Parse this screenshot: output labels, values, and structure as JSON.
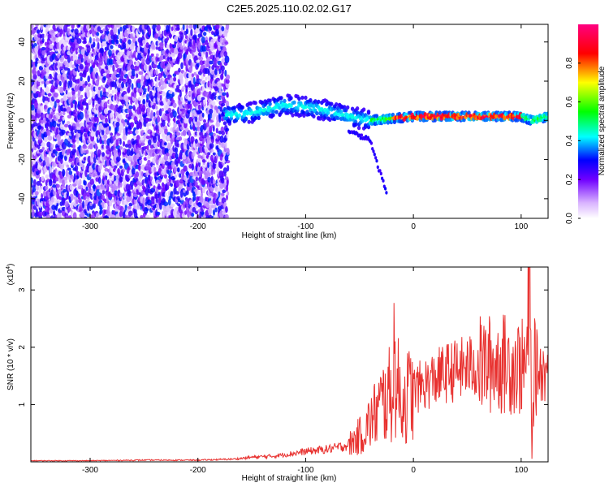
{
  "title": "C2E5.2025.110.02.02.G17",
  "chart_data": [
    {
      "type": "heatmap",
      "xlabel": "Height of straight line (km)",
      "ylabel": "Frequency (Hz)",
      "xlim": [
        -355,
        125
      ],
      "ylim": [
        -50,
        49
      ],
      "xticks": [
        -300,
        -200,
        -100,
        0,
        100
      ],
      "yticks": [
        -40,
        -20,
        0,
        20,
        40
      ],
      "colorbar": {
        "label": "Normalized spectral amplitude",
        "range": [
          0,
          1
        ],
        "ticks": [
          "0.0",
          "0.2",
          "0.4",
          "0.6",
          "0.8"
        ],
        "colormap": [
          "#ffffff",
          "#7000ff",
          "#0000ff",
          "#00ffff",
          "#00ff00",
          "#ffff00",
          "#ff0000",
          "#ff0080"
        ]
      },
      "features": {
        "noise_region_x": [
          -355,
          -172
        ],
        "signal_track": {
          "x": [
            -175,
            -160,
            -140,
            -120,
            -100,
            -80,
            -60,
            -40,
            -20,
            0,
            20,
            40,
            60,
            80,
            100,
            110,
            125
          ],
          "freq_hz": [
            3,
            3,
            5,
            8,
            7,
            5,
            2,
            0,
            1,
            2,
            2,
            2,
            2,
            2,
            2,
            0,
            2
          ]
        },
        "branch_track": {
          "x": [
            -60,
            -50,
            -40,
            -35,
            -30,
            -25
          ],
          "freq_hz": [
            -5,
            -8,
            -10,
            -20,
            -28,
            -37
          ]
        }
      }
    },
    {
      "type": "line",
      "xlabel": "Height of straight line (km)",
      "ylabel": "SNR (10 * v/v)",
      "multiplier_label": "(x10",
      "multiplier_exp": "4",
      "xlim": [
        -355,
        125
      ],
      "ylim": [
        0,
        3.4
      ],
      "xticks": [
        -300,
        -200,
        -100,
        0,
        100
      ],
      "yticks": [
        1,
        2,
        3
      ],
      "color": "#e8312f",
      "series": [
        {
          "x": [
            -355,
            -300,
            -250,
            -200,
            -180,
            -165,
            -150,
            -130,
            -110,
            -100,
            -90,
            -80,
            -70,
            -60,
            -50,
            -45,
            -40,
            -35,
            -30,
            -25,
            -20,
            -18,
            -15,
            -10,
            -5,
            0,
            10,
            20,
            30,
            40,
            50,
            60,
            70,
            80,
            90,
            95,
            100,
            105,
            108,
            110,
            112,
            115,
            120,
            125
          ],
          "values": [
            0.02,
            0.02,
            0.03,
            0.03,
            0.04,
            0.05,
            0.08,
            0.1,
            0.15,
            0.18,
            0.2,
            0.22,
            0.25,
            0.3,
            0.45,
            0.55,
            0.7,
            0.85,
            1.0,
            1.1,
            1.2,
            1.8,
            1.3,
            1.05,
            1.15,
            1.25,
            1.35,
            1.45,
            1.55,
            1.6,
            1.65,
            1.68,
            1.7,
            1.72,
            1.7,
            1.68,
            1.65,
            1.65,
            3.3,
            0.1,
            1.65,
            1.62,
            1.6,
            1.57
          ]
        }
      ]
    }
  ]
}
